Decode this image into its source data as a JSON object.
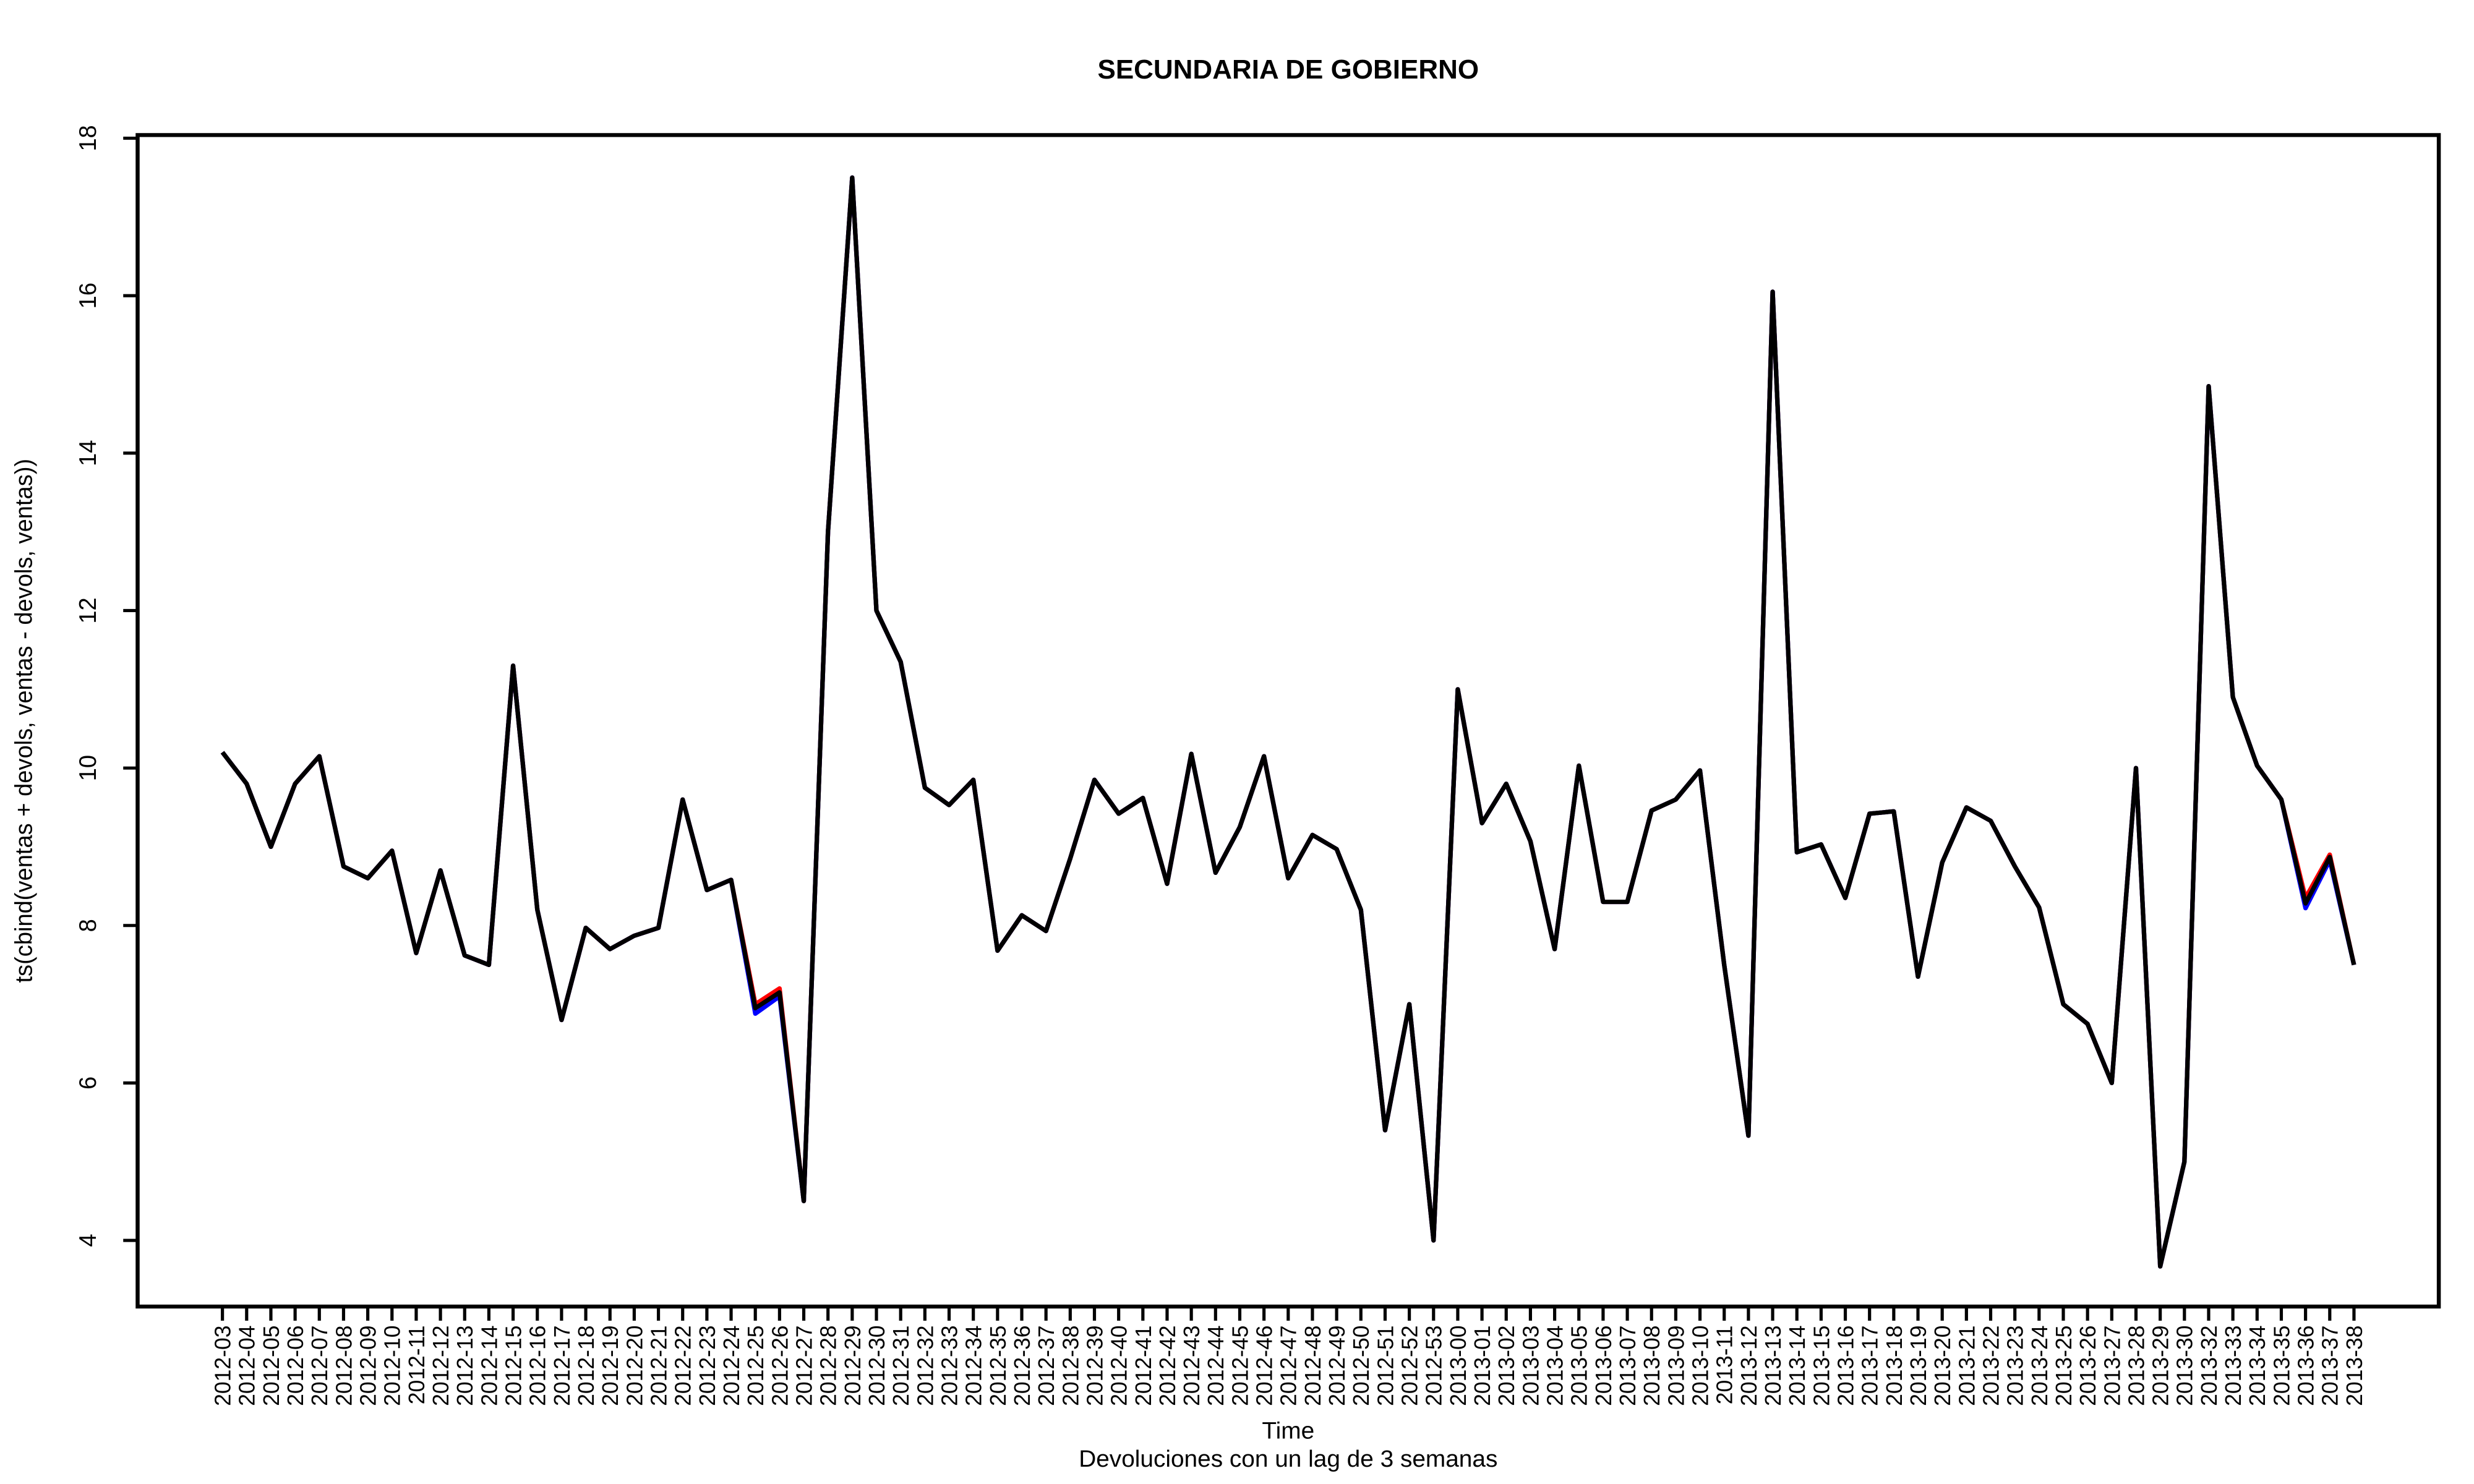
{
  "chart_data": {
    "type": "line",
    "title": "SECUNDARIA DE GOBIERNO",
    "y_label": "ts(cbind(ventas + devols, ventas - devols, ventas))",
    "x_label": "Time",
    "subtitle": "Devoluciones con un lag de 3 semanas",
    "categories": [
      "2012-03",
      "2012-04",
      "2012-05",
      "2012-06",
      "2012-07",
      "2012-08",
      "2012-09",
      "2012-10",
      "2012-11",
      "2012-12",
      "2012-13",
      "2012-14",
      "2012-15",
      "2012-16",
      "2012-17",
      "2012-18",
      "2012-19",
      "2012-20",
      "2012-21",
      "2012-22",
      "2012-23",
      "2012-24",
      "2012-25",
      "2012-26",
      "2012-27",
      "2012-28",
      "2012-29",
      "2012-30",
      "2012-31",
      "2012-32",
      "2012-33",
      "2012-34",
      "2012-35",
      "2012-36",
      "2012-37",
      "2012-38",
      "2012-39",
      "2012-40",
      "2012-41",
      "2012-42",
      "2012-43",
      "2012-44",
      "2012-45",
      "2012-46",
      "2012-47",
      "2012-48",
      "2012-49",
      "2012-50",
      "2012-51",
      "2012-52",
      "2012-53",
      "2013-00",
      "2013-01",
      "2013-02",
      "2013-03",
      "2013-04",
      "2013-05",
      "2013-06",
      "2013-07",
      "2013-08",
      "2013-09",
      "2013-10",
      "2013-11",
      "2013-12",
      "2013-13",
      "2013-14",
      "2013-15",
      "2013-16",
      "2013-17",
      "2013-18",
      "2013-19",
      "2013-20",
      "2013-21",
      "2013-22",
      "2013-23",
      "2013-24",
      "2013-25",
      "2013-26",
      "2013-27",
      "2013-28",
      "2013-29",
      "2013-30",
      "2013-32",
      "2013-33",
      "2013-34",
      "2013-35",
      "2013-36",
      "2013-37",
      "2013-38"
    ],
    "series": [
      {
        "color": "#ff0000",
        "values": [
          10.2,
          9.8,
          9.0,
          9.8,
          10.15,
          8.75,
          8.6,
          8.95,
          7.65,
          8.7,
          7.62,
          7.5,
          11.3,
          8.2,
          6.8,
          7.97,
          7.7,
          7.87,
          7.97,
          9.6,
          8.45,
          8.58,
          7.0,
          7.2,
          4.5,
          13.0,
          17.5,
          12.0,
          11.35,
          9.75,
          9.53,
          9.85,
          7.68,
          8.13,
          7.93,
          8.85,
          9.85,
          9.42,
          9.62,
          8.53,
          10.18,
          8.67,
          9.25,
          10.15,
          8.6,
          9.15,
          8.97,
          8.2,
          5.4,
          7.0,
          4.0,
          11.0,
          9.3,
          9.8,
          9.07,
          7.7,
          10.03,
          8.3,
          8.3,
          9.46,
          9.6,
          9.97,
          7.5,
          5.33,
          16.05,
          8.93,
          9.03,
          8.35,
          9.42,
          9.45,
          7.35,
          8.8,
          9.5,
          9.33,
          8.75,
          8.23,
          7.0,
          6.75,
          6.0,
          10.0,
          3.67,
          5.0,
          14.85,
          10.9,
          10.03,
          9.6,
          8.35,
          8.9,
          7.5
        ]
      },
      {
        "color": "#0000ff",
        "values": [
          10.2,
          9.8,
          9.0,
          9.8,
          10.15,
          8.75,
          8.6,
          8.95,
          7.65,
          8.7,
          7.62,
          7.5,
          11.3,
          8.2,
          6.8,
          7.97,
          7.7,
          7.87,
          7.97,
          9.6,
          8.45,
          8.58,
          6.88,
          7.1,
          4.5,
          13.0,
          17.5,
          12.0,
          11.35,
          9.75,
          9.53,
          9.85,
          7.68,
          8.13,
          7.93,
          8.85,
          9.85,
          9.42,
          9.62,
          8.53,
          10.18,
          8.67,
          9.25,
          10.15,
          8.6,
          9.15,
          8.97,
          8.2,
          5.4,
          7.0,
          4.0,
          11.0,
          9.3,
          9.8,
          9.07,
          7.7,
          10.03,
          8.3,
          8.3,
          9.46,
          9.6,
          9.97,
          7.5,
          5.33,
          16.05,
          8.93,
          9.03,
          8.35,
          9.42,
          9.45,
          7.35,
          8.8,
          9.5,
          9.33,
          8.75,
          8.23,
          7.0,
          6.75,
          6.0,
          10.0,
          3.67,
          5.0,
          14.85,
          10.9,
          10.03,
          9.6,
          8.22,
          8.83,
          7.5
        ]
      },
      {
        "color": "#000000",
        "values": [
          10.2,
          9.8,
          9.0,
          9.8,
          10.15,
          8.75,
          8.6,
          8.95,
          7.65,
          8.7,
          7.62,
          7.5,
          11.3,
          8.2,
          6.8,
          7.97,
          7.7,
          7.87,
          7.97,
          9.6,
          8.45,
          8.58,
          6.95,
          7.15,
          4.5,
          13.0,
          17.5,
          12.0,
          11.35,
          9.75,
          9.53,
          9.85,
          7.68,
          8.13,
          7.93,
          8.85,
          9.85,
          9.42,
          9.62,
          8.53,
          10.18,
          8.67,
          9.25,
          10.15,
          8.6,
          9.15,
          8.97,
          8.2,
          5.4,
          7.0,
          4.0,
          11.0,
          9.3,
          9.8,
          9.07,
          7.7,
          10.03,
          8.3,
          8.3,
          9.46,
          9.6,
          9.97,
          7.5,
          5.33,
          16.05,
          8.93,
          9.03,
          8.35,
          9.42,
          9.45,
          7.35,
          8.8,
          9.5,
          9.33,
          8.75,
          8.23,
          7.0,
          6.75,
          6.0,
          10.0,
          3.67,
          5.0,
          14.85,
          10.9,
          10.03,
          9.6,
          8.28,
          8.87,
          7.5
        ]
      }
    ],
    "ylim": [
      3.16,
      18.04
    ],
    "yticks": [
      4,
      6,
      8,
      10,
      12,
      14,
      16,
      18
    ],
    "grid": false
  }
}
